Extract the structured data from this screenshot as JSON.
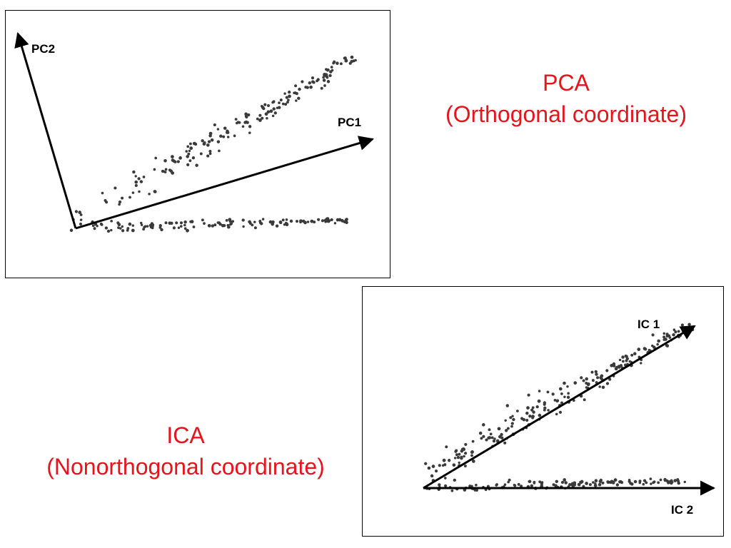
{
  "colors": {
    "caption": "#e8141a",
    "points": "#3a3a3a",
    "axes": "#000000",
    "frame": "#000000"
  },
  "pca": {
    "caption_line1": "PCA",
    "caption_line2": "(Orthogonal coordinate)",
    "axis1_label": "PC1",
    "axis2_label": "PC2"
  },
  "ica": {
    "caption_line1": "ICA",
    "caption_line2": "(Nonorthogonal coordinate)",
    "axis1_label": "IC 1",
    "axis2_label": "IC 2"
  }
}
